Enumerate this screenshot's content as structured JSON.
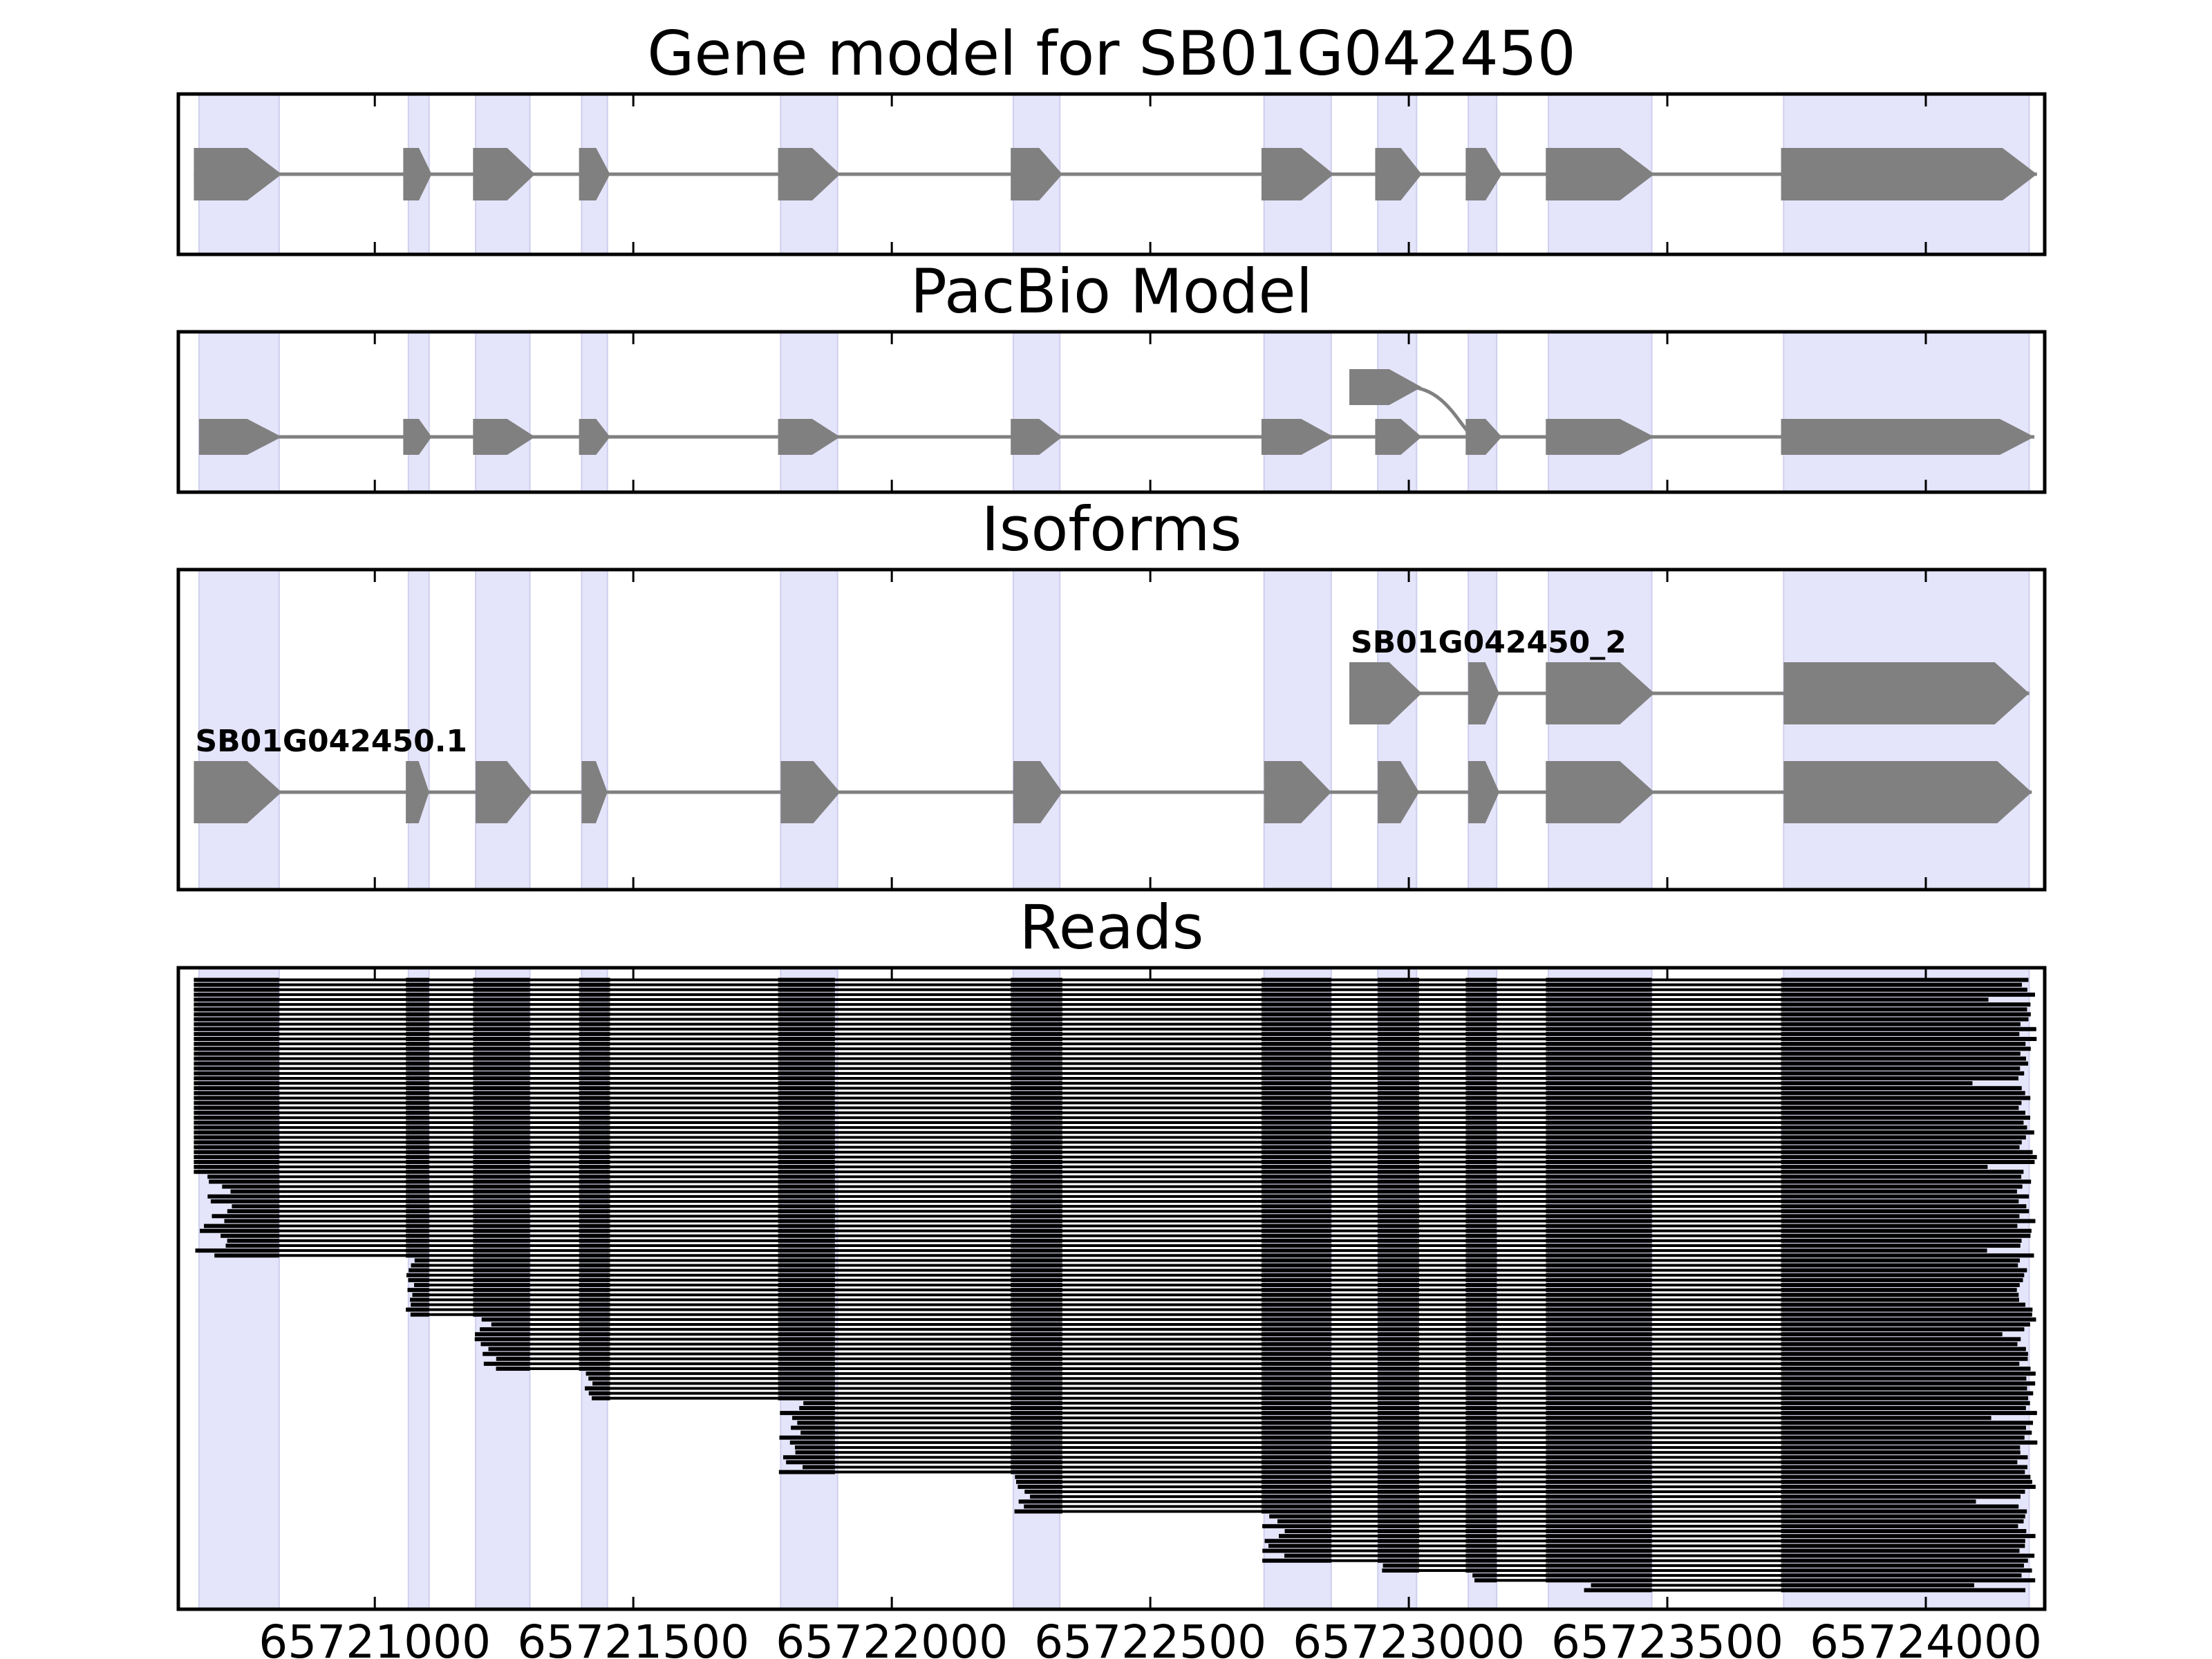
{
  "figure_title": "Gene model for SB01G042450",
  "colors": {
    "exon_shading": "#e4e4fa",
    "shading_edge": "#cfcfee",
    "gene_shape": "#808080",
    "read": "#000000",
    "frame": "#000000"
  },
  "chart_data": {
    "type": "gene-structure",
    "xlim": [
      65720620,
      65724230
    ],
    "x_ticks": [
      65721000,
      65721500,
      65722000,
      65722500,
      65723000,
      65723500,
      65724000
    ],
    "x_tick_labels": [
      "65721000",
      "65721500",
      "65722000",
      "65722500",
      "65723000",
      "65723500",
      "65724000"
    ],
    "shaded_exons": [
      [
        65720660,
        65720815
      ],
      [
        65721065,
        65721105
      ],
      [
        65721195,
        65721300
      ],
      [
        65721400,
        65721450
      ],
      [
        65721785,
        65721895
      ],
      [
        65722235,
        65722325
      ],
      [
        65722720,
        65722850
      ],
      [
        65722940,
        65723015
      ],
      [
        65723115,
        65723170
      ],
      [
        65723270,
        65723470
      ],
      [
        65723725,
        65724200
      ]
    ],
    "panels": [
      {
        "title": "Gene model for SB01G042450",
        "tracks": [
          {
            "label": "",
            "exons": [
              [
                65720650,
                65720820
              ],
              [
                65721055,
                65721110
              ],
              [
                65721190,
                65721310
              ],
              [
                65721395,
                65721455
              ],
              [
                65721780,
                65721900
              ],
              [
                65722230,
                65722330
              ],
              [
                65722715,
                65722855
              ],
              [
                65722935,
                65723025
              ],
              [
                65723110,
                65723180
              ],
              [
                65723265,
                65723475
              ],
              [
                65723720,
                65724215
              ]
            ]
          }
        ]
      },
      {
        "title": "PacBio Model",
        "tracks": [
          {
            "label": "",
            "exons": [
              [
                65720660,
                65720820
              ],
              [
                65721055,
                65721110
              ],
              [
                65721190,
                65721310
              ],
              [
                65721395,
                65721455
              ],
              [
                65721780,
                65721900
              ],
              [
                65722230,
                65722330
              ],
              [
                65722715,
                65722855
              ],
              [
                65722935,
                65723025
              ],
              [
                65723110,
                65723180
              ],
              [
                65723265,
                65723475
              ],
              [
                65723720,
                65724210
              ]
            ]
          },
          {
            "label": "",
            "exons": [
              [
                65722885,
                65723025
              ]
            ],
            "curve_to": 65723130
          }
        ]
      },
      {
        "title": "Isoforms",
        "tracks": [
          {
            "label": "SB01G042450_2",
            "exons": [
              [
                65722885,
                65723025
              ],
              [
                65723115,
                65723175
              ],
              [
                65723265,
                65723475
              ],
              [
                65723725,
                65724200
              ]
            ]
          },
          {
            "label": "SB01G042450.1",
            "exons": [
              [
                65720650,
                65720820
              ],
              [
                65721060,
                65721105
              ],
              [
                65721195,
                65721305
              ],
              [
                65721400,
                65721450
              ],
              [
                65721785,
                65721900
              ],
              [
                65722235,
                65722330
              ],
              [
                65722720,
                65722850
              ],
              [
                65722940,
                65723020
              ],
              [
                65723115,
                65723175
              ],
              [
                65723265,
                65723475
              ],
              [
                65723725,
                65724205
              ]
            ]
          }
        ]
      },
      {
        "title": "Reads",
        "read_count": 125,
        "exon_boundaries": [
          [
            65720650,
            65720815
          ],
          [
            65721060,
            65721105
          ],
          [
            65721190,
            65721300
          ],
          [
            65721395,
            65721455
          ],
          [
            65721780,
            65721890
          ],
          [
            65722230,
            65722330
          ],
          [
            65722715,
            65722850
          ],
          [
            65722940,
            65723020
          ],
          [
            65723110,
            65723170
          ],
          [
            65723265,
            65723470
          ],
          [
            65723720,
            65724200
          ]
        ],
        "read_start_exon_profile": [
          [
            0,
            57
          ],
          [
            1,
            69
          ],
          [
            2,
            80
          ],
          [
            3,
            86
          ],
          [
            4,
            101
          ],
          [
            5,
            109
          ],
          [
            6,
            119
          ],
          [
            7,
            121
          ],
          [
            8,
            123
          ],
          [
            9,
            125
          ]
        ]
      }
    ]
  }
}
